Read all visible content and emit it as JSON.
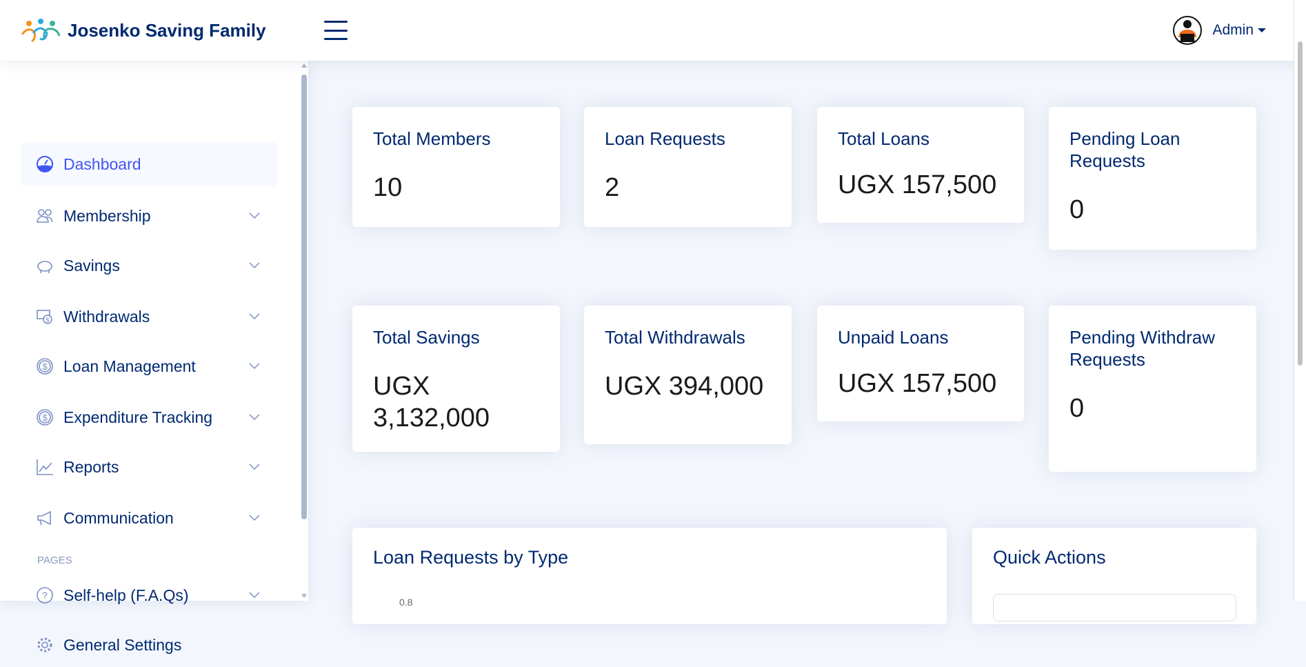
{
  "header": {
    "brand": "Josenko Saving Family",
    "user": "Admin"
  },
  "sidebar": {
    "items": [
      {
        "label": "Dashboard",
        "icon": "speedometer-icon",
        "active": true
      },
      {
        "label": "Membership",
        "icon": "people-icon"
      },
      {
        "label": "Savings",
        "icon": "piggy-bank-icon"
      },
      {
        "label": "Withdrawals",
        "icon": "cash-coin-icon"
      },
      {
        "label": "Loan Management",
        "icon": "coin-icon"
      },
      {
        "label": "Expenditure Tracking",
        "icon": "coin-icon"
      },
      {
        "label": "Reports",
        "icon": "graph-up-icon"
      },
      {
        "label": "Communication",
        "icon": "megaphone-icon"
      }
    ],
    "section": "PAGES",
    "pages": [
      {
        "label": "Self-help (F.A.Qs)",
        "icon": "question-circle-icon"
      },
      {
        "label": "General Settings",
        "icon": "gear-icon"
      }
    ]
  },
  "cards": [
    {
      "title": "Total Members",
      "value": "10"
    },
    {
      "title": "Loan Requests",
      "value": "2"
    },
    {
      "title": "Total Loans",
      "value": "UGX 157,500"
    },
    {
      "title": "Pending Loan Requests",
      "value": "0"
    },
    {
      "title": "Total Savings",
      "value": "UGX 3,132,000"
    },
    {
      "title": "Total Withdrawals",
      "value": "UGX 394,000"
    },
    {
      "title": "Unpaid Loans",
      "value": "UGX 157,500"
    },
    {
      "title": "Pending Withdraw Requests",
      "value": "0"
    }
  ],
  "chart": {
    "title": "Loan Requests by Type",
    "partial_tick": "0.8"
  },
  "quick_actions": {
    "title": "Quick Actions"
  },
  "colors": {
    "primary": "#012970",
    "accent": "#4154f1",
    "background": "#f3f6fc"
  }
}
